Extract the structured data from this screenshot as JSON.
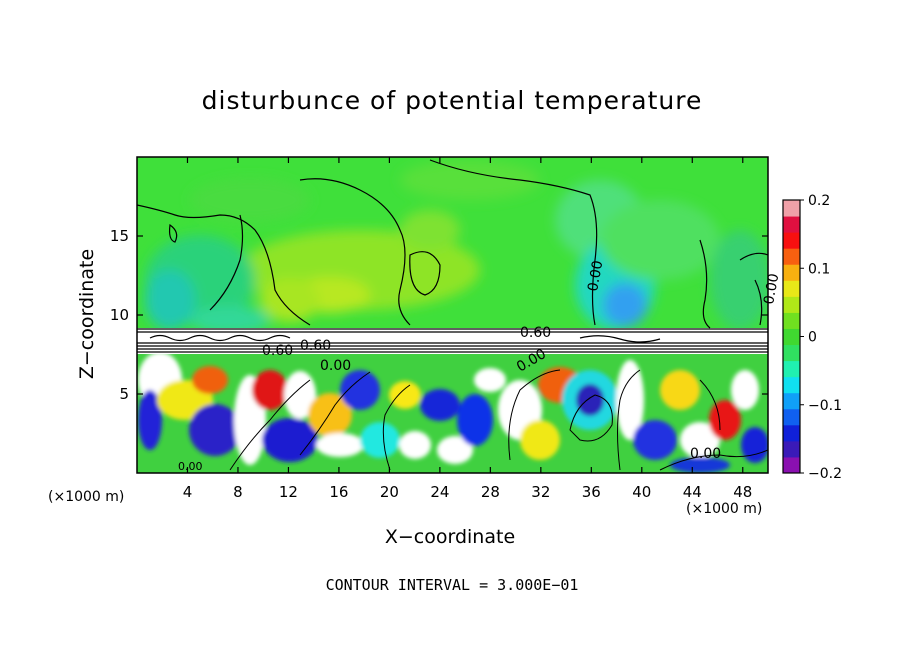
{
  "chart_data": {
    "type": "heatmap",
    "title": "disturbunce of potential temperature",
    "xlabel": "X−coordinate",
    "ylabel": "Z−coordinate",
    "x_unit_label": "(×1000 m)",
    "x_unit_label_right": "(×1000 m)",
    "xlim": [
      0,
      50
    ],
    "ylim": [
      0,
      20
    ],
    "x_ticks": [
      "4",
      "8",
      "12",
      "16",
      "20",
      "24",
      "28",
      "32",
      "36",
      "40",
      "44",
      "48"
    ],
    "x_tick_values": [
      4,
      8,
      12,
      16,
      20,
      24,
      28,
      32,
      36,
      40,
      44,
      48
    ],
    "y_ticks": [
      "5",
      "10",
      "15"
    ],
    "y_tick_values": [
      5,
      10,
      15
    ],
    "colorbar": {
      "range": [
        -0.2,
        0.2
      ],
      "tick_labels": [
        "0.2",
        "0.1",
        "0",
        "−0.1",
        "−0.2"
      ],
      "tick_values": [
        0.2,
        0.1,
        0,
        -0.1,
        -0.2
      ],
      "colors": [
        "#8a10b0",
        "#3a1ab8",
        "#1020d8",
        "#1060f0",
        "#10a0f8",
        "#10e0f0",
        "#20f0b0",
        "#30e060",
        "#40d830",
        "#70e020",
        "#b0e818",
        "#e8e818",
        "#f8b010",
        "#f86010",
        "#f81010",
        "#e01040",
        "#f0a0a8"
      ]
    },
    "contour_labels": [
      "0.00",
      "0.00",
      "0.60",
      "0.60",
      "0.60",
      "0.00",
      "0.00",
      "0.00",
      "0.00"
    ],
    "caption": "CONTOUR INTERVAL = 3.000E−01",
    "regions": [
      {
        "z_range": [
          8,
          20
        ],
        "description_value": "mostly near 0 (green)"
      },
      {
        "z_range": [
          7.5,
          9
        ],
        "description_value": "strong contour band"
      },
      {
        "z_range": [
          0,
          7.5
        ],
        "description_value": "values spanning −0.2 to 0.2"
      }
    ]
  }
}
